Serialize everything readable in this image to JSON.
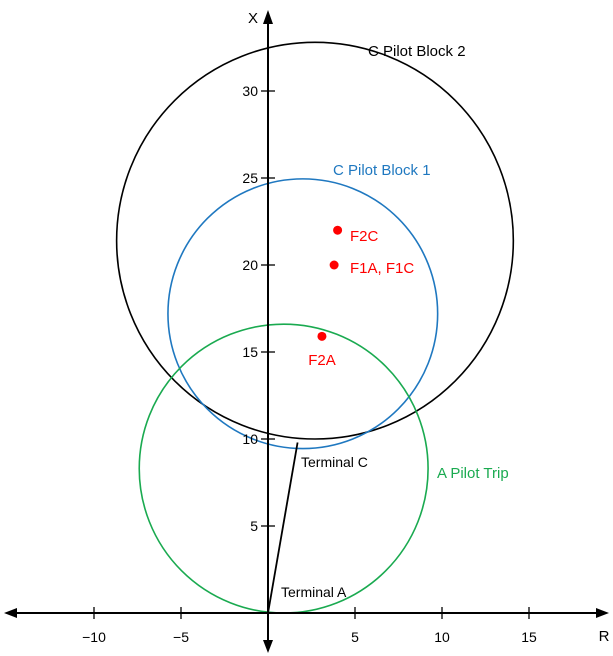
{
  "chart_data": {
    "type": "scatter",
    "xlabel": "R",
    "ylabel": "X",
    "xlim": [
      -15,
      20
    ],
    "ylim": [
      -1,
      34
    ],
    "x_ticks": [
      {
        "value": -10,
        "label": "−10"
      },
      {
        "value": -5,
        "label": "−5"
      },
      {
        "value": 5,
        "label": "5"
      },
      {
        "value": 10,
        "label": "10"
      },
      {
        "value": 15,
        "label": "15"
      }
    ],
    "y_ticks": [
      {
        "value": 5,
        "label": "5"
      },
      {
        "value": 10,
        "label": "10"
      },
      {
        "value": 15,
        "label": "15"
      },
      {
        "value": 20,
        "label": "20"
      },
      {
        "value": 25,
        "label": "25"
      },
      {
        "value": 30,
        "label": "30"
      }
    ],
    "circles": [
      {
        "name": "C Pilot Block 2",
        "center": [
          2.7,
          21.4
        ],
        "radius": 11.4,
        "color": "#000000"
      },
      {
        "name": "C Pilot Block 1",
        "center": [
          2.0,
          17.2
        ],
        "radius": 7.75,
        "color": "#1f78c0"
      },
      {
        "name": "A Pilot Trip",
        "center": [
          0.9,
          8.3
        ],
        "radius": 8.3,
        "color": "#1aaa50"
      }
    ],
    "line": {
      "from": [
        0,
        0
      ],
      "to": [
        1.7,
        9.8
      ],
      "color": "#000000"
    },
    "terminals": [
      {
        "label": "Terminal C",
        "x": 1.7,
        "y": 9.8
      },
      {
        "label": "Terminal A",
        "x": 0,
        "y": 0
      }
    ],
    "points": [
      {
        "label": "F2C",
        "x": 4.0,
        "y": 22.0,
        "color": "#ff0000"
      },
      {
        "label": "F1A, F1C",
        "x": 3.8,
        "y": 20.0,
        "color": "#ff0000"
      },
      {
        "label": "F2A",
        "x": 3.1,
        "y": 15.9,
        "color": "#ff0000"
      }
    ]
  }
}
